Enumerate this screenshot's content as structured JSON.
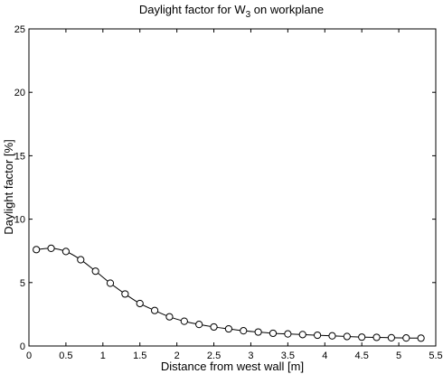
{
  "chart_data": {
    "type": "line",
    "title_main": "Daylight factor for W",
    "title_sub": "3",
    "title_rest": " on workplane",
    "xlabel": "Distance from west wall [m]",
    "ylabel": "Daylight factor [%]",
    "xlim": [
      0,
      5.5
    ],
    "ylim": [
      0,
      25
    ],
    "xticks": [
      0,
      0.5,
      1,
      1.5,
      2,
      2.5,
      3,
      3.5,
      4,
      4.5,
      5,
      5.5
    ],
    "xtick_labels": [
      "0",
      "0.5",
      "1",
      "1.5",
      "2",
      "2.5",
      "3",
      "3.5",
      "4",
      "4.5",
      "5",
      "5.5"
    ],
    "yticks": [
      0,
      5,
      10,
      15,
      20,
      25
    ],
    "ytick_labels": [
      "0",
      "5",
      "10",
      "15",
      "20",
      "25"
    ],
    "grid": false,
    "marker": "circle",
    "line_color": "#000000",
    "series": [
      {
        "x": [
          0.1,
          0.3,
          0.5,
          0.7,
          0.9,
          1.1,
          1.3,
          1.5,
          1.7,
          1.9,
          2.1,
          2.3,
          2.5,
          2.7,
          2.9,
          3.1,
          3.3,
          3.5,
          3.7,
          3.9,
          4.1,
          4.3,
          4.5,
          4.7,
          4.9,
          5.1,
          5.3
        ],
        "y": [
          7.6,
          7.7,
          7.45,
          6.8,
          5.9,
          4.95,
          4.1,
          3.35,
          2.8,
          2.3,
          1.95,
          1.7,
          1.5,
          1.35,
          1.2,
          1.1,
          1.0,
          0.95,
          0.9,
          0.85,
          0.8,
          0.75,
          0.7,
          0.68,
          0.65,
          0.63,
          0.62
        ]
      }
    ]
  }
}
